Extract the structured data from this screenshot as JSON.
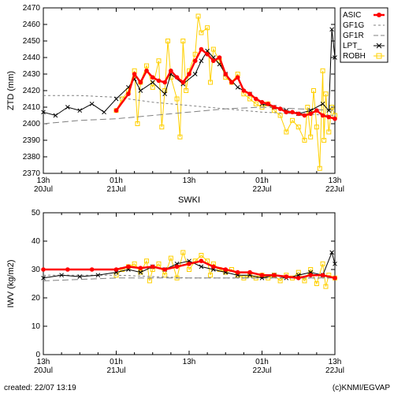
{
  "footer": {
    "created": "created: 22/07 13:19",
    "credit": "(c)KNMI/EGVAP"
  },
  "legend": {
    "items": [
      {
        "id": "ASIC",
        "label": "ASIC",
        "color": "#ff0000",
        "marker": "dot",
        "line": "solid",
        "width": 2.5
      },
      {
        "id": "GF1G",
        "label": "GF1G",
        "color": "#808080",
        "marker": "none",
        "line": "dash-short",
        "width": 1
      },
      {
        "id": "GF1R",
        "label": "GF1R",
        "color": "#808080",
        "marker": "none",
        "line": "dash-long",
        "width": 1
      },
      {
        "id": "LPT_",
        "label": "LPT_",
        "color": "#000000",
        "marker": "x",
        "line": "solid",
        "width": 1
      },
      {
        "id": "ROBH",
        "label": "ROBH",
        "color": "#ffd000",
        "marker": "square",
        "line": "solid",
        "width": 1
      }
    ]
  },
  "charts": [
    {
      "id": "top",
      "type": "line",
      "background": "#ffffff",
      "grid_color": "#000000",
      "xlim": [
        0,
        48
      ],
      "ylim": [
        2370,
        2470
      ],
      "xticks": [
        {
          "v": 0,
          "t": "13h",
          "b": "20Jul"
        },
        {
          "v": 12,
          "t": "01h",
          "b": "21Jul"
        },
        {
          "v": 24,
          "t": "13h",
          "b": ""
        },
        {
          "v": 36,
          "t": "01h",
          "b": "22Jul"
        },
        {
          "v": 48,
          "t": "13h",
          "b": "22Jul"
        }
      ],
      "yticks": [
        2370,
        2380,
        2390,
        2400,
        2410,
        2420,
        2430,
        2440,
        2450,
        2460,
        2470
      ],
      "ylabel": "ZTD (mm)",
      "subtitle": "SWKI",
      "series": {
        "GF1G": [
          [
            0,
            2417
          ],
          [
            6,
            2417
          ],
          [
            12,
            2416
          ],
          [
            18,
            2413
          ],
          [
            24,
            2411
          ],
          [
            30,
            2409
          ],
          [
            36,
            2407
          ],
          [
            42,
            2406
          ],
          [
            48,
            2405
          ]
        ],
        "GF1R": [
          [
            0,
            2400
          ],
          [
            6,
            2402
          ],
          [
            12,
            2403
          ],
          [
            18,
            2405
          ],
          [
            24,
            2407
          ],
          [
            30,
            2409
          ],
          [
            36,
            2410
          ],
          [
            42,
            2409
          ],
          [
            48,
            2408
          ]
        ],
        "LPT_": [
          [
            0,
            2407
          ],
          [
            2,
            2405
          ],
          [
            4,
            2410
          ],
          [
            6,
            2408
          ],
          [
            8,
            2412
          ],
          [
            10,
            2407
          ],
          [
            12,
            2415
          ],
          [
            14,
            2422
          ],
          [
            15,
            2427
          ],
          [
            16,
            2420
          ],
          [
            18,
            2425
          ],
          [
            20,
            2418
          ],
          [
            21,
            2430
          ],
          [
            23,
            2424
          ],
          [
            25,
            2430
          ],
          [
            26,
            2438
          ],
          [
            27,
            2444
          ],
          [
            28,
            2440
          ],
          [
            29,
            2436
          ],
          [
            30,
            2430
          ],
          [
            32,
            2422
          ],
          [
            34,
            2418
          ],
          [
            36,
            2412
          ],
          [
            38,
            2410
          ],
          [
            40,
            2408
          ],
          [
            42,
            2406
          ],
          [
            44,
            2408
          ],
          [
            46,
            2412
          ],
          [
            47,
            2408
          ],
          [
            47.5,
            2457
          ],
          [
            48,
            2440
          ]
        ],
        "ASIC": [
          [
            12,
            2408
          ],
          [
            14,
            2418
          ],
          [
            15,
            2430
          ],
          [
            16,
            2425
          ],
          [
            17,
            2432
          ],
          [
            18,
            2428
          ],
          [
            19,
            2426
          ],
          [
            20,
            2425
          ],
          [
            21,
            2432
          ],
          [
            22,
            2428
          ],
          [
            23,
            2425
          ],
          [
            24,
            2430
          ],
          [
            25,
            2438
          ],
          [
            26,
            2445
          ],
          [
            27,
            2442
          ],
          [
            28,
            2438
          ],
          [
            29,
            2440
          ],
          [
            30,
            2430
          ],
          [
            31,
            2425
          ],
          [
            32,
            2428
          ],
          [
            33,
            2420
          ],
          [
            34,
            2418
          ],
          [
            35,
            2415
          ],
          [
            36,
            2413
          ],
          [
            37,
            2412
          ],
          [
            38,
            2410
          ],
          [
            39,
            2409
          ],
          [
            40,
            2407
          ],
          [
            41,
            2407
          ],
          [
            42,
            2406
          ],
          [
            43,
            2405
          ],
          [
            44,
            2406
          ],
          [
            45,
            2408
          ],
          [
            46,
            2405
          ],
          [
            47,
            2404
          ],
          [
            48,
            2403
          ]
        ],
        "ROBH": [
          [
            12,
            2408
          ],
          [
            13,
            2415
          ],
          [
            14,
            2420
          ],
          [
            15,
            2432
          ],
          [
            15.5,
            2400
          ],
          [
            16,
            2425
          ],
          [
            17,
            2435
          ],
          [
            18,
            2422
          ],
          [
            19,
            2438
          ],
          [
            19.5,
            2398
          ],
          [
            20,
            2420
          ],
          [
            20.5,
            2450
          ],
          [
            21,
            2428
          ],
          [
            22,
            2415
          ],
          [
            22.5,
            2392
          ],
          [
            23,
            2450
          ],
          [
            23.5,
            2420
          ],
          [
            24,
            2432
          ],
          [
            25,
            2442
          ],
          [
            25.5,
            2465
          ],
          [
            26,
            2455
          ],
          [
            27,
            2458
          ],
          [
            27.5,
            2425
          ],
          [
            28,
            2445
          ],
          [
            29,
            2438
          ],
          [
            30,
            2428
          ],
          [
            31,
            2425
          ],
          [
            32,
            2430
          ],
          [
            33,
            2418
          ],
          [
            34,
            2415
          ],
          [
            35,
            2412
          ],
          [
            36,
            2410
          ],
          [
            37,
            2412
          ],
          [
            38,
            2408
          ],
          [
            39,
            2405
          ],
          [
            40,
            2395
          ],
          [
            41,
            2402
          ],
          [
            42,
            2398
          ],
          [
            43,
            2390
          ],
          [
            43.5,
            2410
          ],
          [
            44,
            2392
          ],
          [
            44.5,
            2420
          ],
          [
            45,
            2398
          ],
          [
            45.5,
            2373
          ],
          [
            46,
            2432
          ],
          [
            46.2,
            2390
          ],
          [
            46.5,
            2418
          ],
          [
            47,
            2395
          ],
          [
            47.5,
            2410
          ],
          [
            48,
            2405
          ]
        ]
      }
    },
    {
      "id": "bottom",
      "type": "line",
      "background": "#ffffff",
      "xlim": [
        0,
        48
      ],
      "ylim": [
        0,
        50
      ],
      "xticks": [
        {
          "v": 0,
          "t": "13h",
          "b": "20Jul"
        },
        {
          "v": 12,
          "t": "01h",
          "b": "21Jul"
        },
        {
          "v": 24,
          "t": "13h",
          "b": ""
        },
        {
          "v": 36,
          "t": "01h",
          "b": "22Jul"
        },
        {
          "v": 48,
          "t": "13h",
          "b": "22Jul"
        }
      ],
      "yticks": [
        0,
        10,
        20,
        30,
        40,
        50
      ],
      "ylabel": "IWV (kg/m2)",
      "series": {
        "GF1G": [
          [
            0,
            28
          ],
          [
            12,
            28
          ],
          [
            24,
            27
          ],
          [
            36,
            27
          ],
          [
            48,
            27
          ]
        ],
        "GF1R": [
          [
            0,
            26
          ],
          [
            12,
            27
          ],
          [
            24,
            27
          ],
          [
            36,
            27
          ],
          [
            48,
            27
          ]
        ],
        "LPT_": [
          [
            0,
            27
          ],
          [
            3,
            28
          ],
          [
            6,
            27.5
          ],
          [
            9,
            28
          ],
          [
            12,
            29
          ],
          [
            14,
            30
          ],
          [
            16,
            29
          ],
          [
            18,
            31
          ],
          [
            20,
            30
          ],
          [
            22,
            32
          ],
          [
            24,
            33
          ],
          [
            26,
            31
          ],
          [
            28,
            30
          ],
          [
            30,
            29
          ],
          [
            32,
            28
          ],
          [
            34,
            28
          ],
          [
            36,
            27
          ],
          [
            38,
            28
          ],
          [
            40,
            27
          ],
          [
            42,
            28
          ],
          [
            44,
            29
          ],
          [
            46,
            28
          ],
          [
            47.5,
            36
          ],
          [
            48,
            32
          ]
        ],
        "ASIC": [
          [
            0,
            30
          ],
          [
            4,
            30
          ],
          [
            8,
            30
          ],
          [
            12,
            30
          ],
          [
            14,
            31
          ],
          [
            16,
            30.5
          ],
          [
            18,
            31
          ],
          [
            20,
            30
          ],
          [
            22,
            31
          ],
          [
            24,
            32
          ],
          [
            26,
            33
          ],
          [
            28,
            31
          ],
          [
            30,
            30
          ],
          [
            32,
            29
          ],
          [
            34,
            29
          ],
          [
            36,
            28
          ],
          [
            38,
            28
          ],
          [
            40,
            27.5
          ],
          [
            42,
            27
          ],
          [
            44,
            28
          ],
          [
            46,
            28
          ],
          [
            48,
            27
          ]
        ],
        "ROBH": [
          [
            12,
            28
          ],
          [
            13,
            30
          ],
          [
            14,
            31
          ],
          [
            15,
            32
          ],
          [
            16,
            29
          ],
          [
            17,
            33
          ],
          [
            17.5,
            26
          ],
          [
            18,
            30
          ],
          [
            19,
            32
          ],
          [
            20,
            28
          ],
          [
            21,
            34
          ],
          [
            22,
            27
          ],
          [
            23,
            36
          ],
          [
            24,
            30
          ],
          [
            25,
            33
          ],
          [
            26,
            35
          ],
          [
            27,
            33
          ],
          [
            27.5,
            28
          ],
          [
            28,
            32
          ],
          [
            29,
            30
          ],
          [
            30,
            29
          ],
          [
            31,
            30
          ],
          [
            32,
            28
          ],
          [
            33,
            27
          ],
          [
            34,
            28
          ],
          [
            35,
            27
          ],
          [
            36,
            28
          ],
          [
            37,
            27
          ],
          [
            38,
            28
          ],
          [
            39,
            26
          ],
          [
            40,
            28
          ],
          [
            41,
            27
          ],
          [
            42,
            29
          ],
          [
            43,
            26
          ],
          [
            44,
            30
          ],
          [
            45,
            25
          ],
          [
            46,
            32
          ],
          [
            46.5,
            24
          ],
          [
            47,
            28
          ],
          [
            48,
            27
          ]
        ]
      }
    }
  ]
}
